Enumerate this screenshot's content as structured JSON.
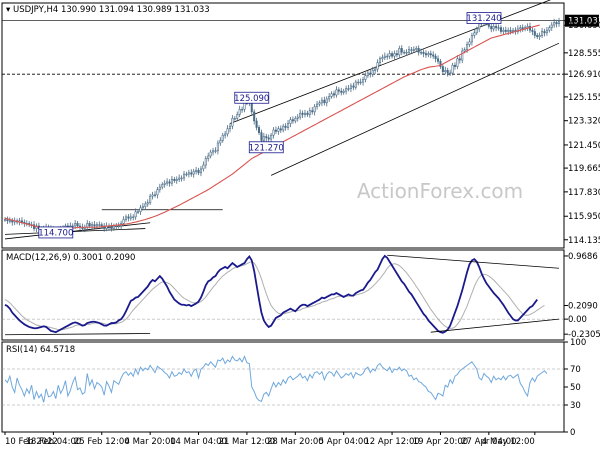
{
  "header": {
    "symbol_label": "USDJPY,H4",
    "ohlc_text": "130.990 131.094 130.989 131.033"
  },
  "watermark": "ActionForex.com",
  "colors": {
    "candles": "#4a6b85",
    "ma_fast": "#d9534f",
    "macd_line": "#1a1a8c",
    "macd_signal": "#b0b0b0",
    "rsi": "#6fa8dc",
    "guides": "#000000",
    "grid": "#cccccc",
    "annotation_box": "#1a1a8c"
  },
  "chart_data": [
    {
      "type": "candlestick",
      "name": "price",
      "ylim": [
        113.5,
        132.4
      ],
      "y_ticks": [
        "131.033",
        "130.690",
        "128.555",
        "126.910",
        "125.155",
        "123.320",
        "121.450",
        "119.665",
        "117.830",
        "115.950",
        "114.135"
      ],
      "y_tick_values": [
        131.033,
        130.69,
        128.555,
        126.91,
        125.155,
        123.32,
        121.45,
        119.665,
        117.83,
        115.95,
        114.135
      ],
      "current_price": 131.033,
      "horizontal_line": 126.91,
      "annotations": [
        {
          "label": "131.240",
          "value": 131.24,
          "x_index": 198
        },
        {
          "label": "125.090",
          "value": 125.09,
          "x_index": 102
        },
        {
          "label": "121.270",
          "value": 121.27,
          "x_index": 108
        },
        {
          "label": "114.700",
          "value": 114.7,
          "x_index": 21
        }
      ],
      "closes": [
        115.7,
        115.6,
        115.6,
        115.5,
        115.6,
        115.5,
        115.6,
        115.5,
        115.4,
        115.4,
        115.3,
        115.3,
        115.0,
        115.2,
        115.0,
        114.9,
        115.0,
        115.1,
        114.9,
        115.0,
        114.9,
        114.8,
        114.9,
        115.0,
        115.0,
        115.2,
        115.1,
        115.2,
        115.2,
        115.4,
        115.2,
        115.1,
        115.0,
        115.1,
        115.4,
        115.2,
        115.3,
        115.2,
        115.3,
        115.3,
        115.2,
        115.0,
        115.2,
        115.2,
        115.0,
        115.2,
        115.2,
        115.2,
        115.4,
        115.7,
        115.9,
        115.8,
        115.9,
        115.9,
        116.3,
        116.3,
        116.6,
        116.7,
        116.9,
        117.0,
        117.5,
        117.6,
        117.6,
        118.0,
        118.2,
        118.4,
        118.5,
        118.6,
        118.5,
        118.8,
        118.7,
        118.8,
        118.9,
        118.9,
        119.2,
        119.2,
        119.3,
        119.2,
        119.4,
        119.5,
        119.3,
        119.6,
        119.9,
        120.4,
        120.6,
        120.9,
        121.0,
        121.0,
        121.6,
        121.8,
        122.2,
        122.3,
        122.7,
        122.9,
        123.5,
        123.5,
        123.8,
        124.2,
        124.2,
        124.7,
        124.7,
        124.8,
        124.0,
        123.3,
        122.8,
        122.4,
        121.8,
        122.1,
        122.0,
        121.9,
        122.2,
        122.6,
        122.5,
        122.7,
        122.6,
        122.9,
        122.8,
        123.1,
        123.4,
        123.3,
        123.5,
        123.6,
        123.9,
        123.8,
        123.9,
        123.8,
        124.1,
        124.0,
        124.4,
        124.6,
        124.7,
        124.9,
        124.7,
        125.0,
        125.2,
        125.4,
        125.3,
        125.7,
        125.6,
        125.5,
        125.6,
        125.8,
        125.8,
        126.0,
        125.9,
        126.3,
        126.3,
        126.3,
        126.5,
        126.8,
        127.0,
        126.9,
        127.2,
        127.3,
        127.8,
        128.1,
        128.2,
        128.3,
        128.3,
        128.5,
        128.3,
        128.5,
        128.4,
        128.9,
        128.6,
        128.6,
        128.6,
        128.8,
        128.8,
        128.8,
        128.9,
        128.6,
        128.6,
        128.5,
        128.4,
        128.5,
        128.4,
        128.3,
        128.1,
        127.9,
        127.5,
        127.1,
        127.2,
        127.0,
        127.0,
        127.6,
        127.5,
        128.1,
        128.0,
        128.7,
        128.8,
        129.2,
        129.4,
        129.9,
        130.1,
        130.4,
        130.8,
        130.9,
        130.9,
        130.9,
        130.6,
        130.4,
        130.6,
        130.5,
        130.5,
        130.2,
        130.3,
        130.2,
        130.3,
        130.2,
        130.3,
        130.2,
        130.4,
        130.5,
        130.4,
        130.5,
        130.6,
        130.3,
        130.2,
        129.9,
        129.8,
        129.9,
        130.2,
        130.1,
        130.3,
        130.5,
        130.7,
        130.9,
        130.8,
        131.0
      ],
      "ma": [
        115.8,
        115.75,
        115.7,
        115.65,
        115.6,
        115.55,
        115.5,
        115.45,
        115.4,
        115.35,
        115.3,
        115.25,
        115.2,
        115.15,
        115.1,
        115.05,
        115.0,
        115.0,
        115.0,
        115.0,
        115.0,
        115.0,
        115.0,
        115.0,
        115.0,
        115.0,
        115.0,
        115.02,
        115.04,
        115.06,
        115.08,
        115.1,
        115.1,
        115.1,
        115.1,
        115.1,
        115.1,
        115.1,
        115.1,
        115.12,
        115.14,
        115.16,
        115.18,
        115.2,
        115.22,
        115.24,
        115.26,
        115.28,
        115.3,
        115.32,
        115.35,
        115.38,
        115.42,
        115.46,
        115.5,
        115.55,
        115.6,
        115.65,
        115.7,
        115.76,
        115.82,
        115.88,
        115.95,
        116.02,
        116.1,
        116.18,
        116.26,
        116.35,
        116.44,
        116.53,
        116.62,
        116.71,
        116.8,
        116.9,
        117.0,
        117.1,
        117.2,
        117.3,
        117.4,
        117.5,
        117.6,
        117.7,
        117.8,
        117.9,
        118.0,
        118.12,
        118.24,
        118.36,
        118.48,
        118.6,
        118.72,
        118.84,
        118.96,
        119.08,
        119.2,
        119.35,
        119.5,
        119.65,
        119.8,
        119.95,
        120.1,
        120.25,
        120.4,
        120.5,
        120.6,
        120.7,
        120.8,
        120.9,
        121.0,
        121.1,
        121.2,
        121.3,
        121.4,
        121.5,
        121.6,
        121.7,
        121.8,
        121.9,
        122.0,
        122.1,
        122.2,
        122.3,
        122.4,
        122.5,
        122.6,
        122.7,
        122.8,
        122.9,
        123.0,
        123.1,
        123.2,
        123.3,
        123.4,
        123.5,
        123.6,
        123.7,
        123.8,
        123.9,
        124.0,
        124.1,
        124.2,
        124.3,
        124.4,
        124.5,
        124.6,
        124.7,
        124.8,
        124.9,
        125.0,
        125.1,
        125.2,
        125.3,
        125.4,
        125.5,
        125.6,
        125.7,
        125.8,
        125.9,
        126.0,
        126.1,
        126.2,
        126.3,
        126.4,
        126.5,
        126.6,
        126.7,
        126.78,
        126.86,
        126.94,
        127.02,
        127.1,
        127.18,
        127.26,
        127.32,
        127.38,
        127.44,
        127.48,
        127.5,
        127.52,
        127.55,
        127.6,
        127.7,
        127.8,
        127.9,
        128.0,
        128.1,
        128.2,
        128.3,
        128.4,
        128.5,
        128.6,
        128.7,
        128.8,
        128.9,
        129.0,
        129.1,
        129.2,
        129.3,
        129.4,
        129.5,
        129.6,
        129.7,
        129.75,
        129.8,
        129.85,
        129.9,
        129.95,
        130.0,
        130.05,
        130.1,
        130.15,
        130.2,
        130.25,
        130.3,
        130.35,
        130.4,
        130.45,
        130.5,
        130.55,
        130.6,
        130.65,
        130.7
      ]
    },
    {
      "type": "line",
      "name": "MACD(12,26,9) 0.3001 0.2090",
      "ylim": [
        -0.32,
        1.06
      ],
      "y_ticks": [
        "0.9686",
        "0.2090",
        "0.00",
        "-0.2305"
      ],
      "y_tick_values": [
        0.9686,
        0.209,
        0.0,
        -0.2305
      ],
      "macd": [
        0.22,
        0.2,
        0.16,
        0.1,
        0.06,
        0.02,
        -0.02,
        -0.05,
        -0.08,
        -0.1,
        -0.12,
        -0.13,
        -0.14,
        -0.14,
        -0.13,
        -0.12,
        -0.11,
        -0.12,
        -0.15,
        -0.18,
        -0.19,
        -0.2,
        -0.18,
        -0.16,
        -0.14,
        -0.12,
        -0.1,
        -0.08,
        -0.06,
        -0.05,
        -0.06,
        -0.08,
        -0.1,
        -0.09,
        -0.06,
        -0.05,
        -0.04,
        -0.04,
        -0.05,
        -0.06,
        -0.08,
        -0.1,
        -0.1,
        -0.08,
        -0.06,
        -0.06,
        -0.05,
        -0.02,
        0.0,
        0.05,
        0.12,
        0.2,
        0.28,
        0.3,
        0.33,
        0.34,
        0.38,
        0.42,
        0.46,
        0.5,
        0.56,
        0.6,
        0.58,
        0.62,
        0.66,
        0.62,
        0.56,
        0.5,
        0.42,
        0.36,
        0.3,
        0.27,
        0.24,
        0.22,
        0.22,
        0.21,
        0.22,
        0.2,
        0.22,
        0.24,
        0.27,
        0.33,
        0.42,
        0.52,
        0.58,
        0.6,
        0.64,
        0.66,
        0.72,
        0.76,
        0.78,
        0.8,
        0.78,
        0.82,
        0.86,
        0.83,
        0.8,
        0.82,
        0.84,
        0.86,
        0.92,
        0.96,
        0.9,
        0.74,
        0.52,
        0.3,
        0.1,
        -0.02,
        -0.08,
        -0.12,
        -0.1,
        -0.04,
        0.02,
        0.04,
        0.06,
        0.1,
        0.12,
        0.14,
        0.16,
        0.14,
        0.12,
        0.16,
        0.2,
        0.22,
        0.22,
        0.2,
        0.22,
        0.24,
        0.26,
        0.28,
        0.3,
        0.33,
        0.32,
        0.34,
        0.36,
        0.38,
        0.38,
        0.4,
        0.38,
        0.36,
        0.34,
        0.36,
        0.38,
        0.36,
        0.36,
        0.4,
        0.42,
        0.44,
        0.45,
        0.5,
        0.56,
        0.6,
        0.66,
        0.72,
        0.76,
        0.84,
        0.92,
        0.97,
        0.94,
        0.88,
        0.82,
        0.76,
        0.7,
        0.64,
        0.58,
        0.54,
        0.48,
        0.42,
        0.38,
        0.32,
        0.26,
        0.2,
        0.14,
        0.08,
        0.04,
        -0.02,
        -0.06,
        -0.1,
        -0.14,
        -0.18,
        -0.2,
        -0.21,
        -0.19,
        -0.16,
        -0.1,
        0.0,
        0.1,
        0.2,
        0.32,
        0.44,
        0.58,
        0.72,
        0.84,
        0.9,
        0.92,
        0.88,
        0.8,
        0.7,
        0.62,
        0.55,
        0.5,
        0.45,
        0.4,
        0.36,
        0.32,
        0.27,
        0.22,
        0.16,
        0.1,
        0.05,
        0.0,
        -0.02,
        -0.02,
        0.02,
        0.06,
        0.1,
        0.14,
        0.18,
        0.2,
        0.25,
        0.3
      ],
      "signal": [
        0.3,
        0.28,
        0.25,
        0.21,
        0.17,
        0.13,
        0.09,
        0.05,
        0.02,
        -0.01,
        -0.03,
        -0.05,
        -0.07,
        -0.09,
        -0.1,
        -0.11,
        -0.11,
        -0.11,
        -0.12,
        -0.13,
        -0.14,
        -0.15,
        -0.16,
        -0.16,
        -0.16,
        -0.15,
        -0.14,
        -0.13,
        -0.12,
        -0.1,
        -0.09,
        -0.09,
        -0.09,
        -0.09,
        -0.08,
        -0.08,
        -0.07,
        -0.06,
        -0.06,
        -0.06,
        -0.06,
        -0.07,
        -0.08,
        -0.08,
        -0.08,
        -0.07,
        -0.07,
        -0.06,
        -0.05,
        -0.03,
        0.0,
        0.04,
        0.09,
        0.14,
        0.18,
        0.22,
        0.26,
        0.3,
        0.34,
        0.38,
        0.42,
        0.46,
        0.49,
        0.52,
        0.55,
        0.57,
        0.57,
        0.56,
        0.54,
        0.51,
        0.47,
        0.43,
        0.39,
        0.35,
        0.32,
        0.3,
        0.28,
        0.26,
        0.25,
        0.25,
        0.25,
        0.27,
        0.3,
        0.34,
        0.39,
        0.44,
        0.49,
        0.53,
        0.58,
        0.62,
        0.66,
        0.69,
        0.72,
        0.74,
        0.77,
        0.79,
        0.8,
        0.81,
        0.82,
        0.83,
        0.85,
        0.87,
        0.88,
        0.86,
        0.8,
        0.72,
        0.62,
        0.5,
        0.39,
        0.29,
        0.21,
        0.16,
        0.12,
        0.09,
        0.08,
        0.08,
        0.09,
        0.1,
        0.11,
        0.12,
        0.12,
        0.13,
        0.14,
        0.16,
        0.17,
        0.18,
        0.19,
        0.2,
        0.21,
        0.23,
        0.24,
        0.26,
        0.27,
        0.28,
        0.3,
        0.31,
        0.32,
        0.34,
        0.35,
        0.35,
        0.35,
        0.35,
        0.35,
        0.36,
        0.36,
        0.37,
        0.38,
        0.39,
        0.4,
        0.42,
        0.44,
        0.47,
        0.5,
        0.54,
        0.58,
        0.62,
        0.67,
        0.72,
        0.78,
        0.82,
        0.84,
        0.85,
        0.84,
        0.82,
        0.79,
        0.75,
        0.71,
        0.66,
        0.61,
        0.56,
        0.5,
        0.45,
        0.39,
        0.33,
        0.27,
        0.21,
        0.15,
        0.1,
        0.05,
        0.0,
        -0.04,
        -0.08,
        -0.11,
        -0.13,
        -0.14,
        -0.14,
        -0.12,
        -0.08,
        -0.03,
        0.04,
        0.12,
        0.2,
        0.3,
        0.4,
        0.5,
        0.58,
        0.64,
        0.68,
        0.69,
        0.68,
        0.66,
        0.63,
        0.6,
        0.56,
        0.52,
        0.48,
        0.44,
        0.4,
        0.36,
        0.31,
        0.26,
        0.21,
        0.16,
        0.12,
        0.08,
        0.06,
        0.06,
        0.07,
        0.09,
        0.11,
        0.14,
        0.16,
        0.19,
        0.21
      ]
    },
    {
      "type": "line",
      "name": "RSI(14) 64.5718",
      "ylim": [
        0,
        100
      ],
      "y_ticks": [
        "100",
        "70",
        "50",
        "30",
        "0"
      ],
      "y_tick_values": [
        100,
        70,
        50,
        30,
        0
      ],
      "values": [
        58,
        55,
        62,
        50,
        44,
        60,
        52,
        47,
        40,
        48,
        43,
        52,
        36,
        45,
        38,
        42,
        33,
        48,
        39,
        40,
        45,
        37,
        52,
        43,
        48,
        57,
        40,
        46,
        55,
        61,
        47,
        49,
        42,
        44,
        65,
        52,
        58,
        48,
        55,
        53,
        50,
        41,
        56,
        51,
        44,
        57,
        55,
        53,
        60,
        65,
        67,
        63,
        66,
        62,
        70,
        64,
        72,
        68,
        71,
        69,
        74,
        70,
        66,
        73,
        71,
        69,
        66,
        64,
        60,
        67,
        62,
        63,
        66,
        64,
        70,
        66,
        67,
        62,
        68,
        70,
        60,
        70,
        72,
        76,
        74,
        78,
        75,
        72,
        80,
        79,
        82,
        76,
        80,
        78,
        84,
        80,
        79,
        82,
        78,
        84,
        77,
        76,
        50,
        45,
        38,
        35,
        34,
        42,
        44,
        40,
        48,
        55,
        50,
        55,
        52,
        58,
        54,
        60,
        62,
        58,
        60,
        62,
        65,
        60,
        62,
        57,
        64,
        60,
        66,
        67,
        64,
        67,
        58,
        64,
        67,
        66,
        62,
        68,
        64,
        60,
        62,
        65,
        63,
        66,
        60,
        66,
        64,
        63,
        65,
        70,
        72,
        66,
        70,
        68,
        74,
        76,
        72,
        70,
        68,
        72,
        66,
        70,
        69,
        72,
        68,
        70,
        68,
        62,
        63,
        58,
        60,
        56,
        55,
        52,
        50,
        45,
        44,
        40,
        36,
        43,
        42,
        40,
        52,
        50,
        58,
        54,
        62,
        64,
        68,
        70,
        72,
        74,
        76,
        78,
        74,
        70,
        60,
        58,
        65,
        62,
        60,
        55,
        62,
        58,
        60,
        58,
        62,
        58,
        62,
        63,
        60,
        62,
        64,
        54,
        50,
        44,
        40,
        55,
        60,
        56,
        62,
        64,
        66,
        68,
        65
      ]
    }
  ],
  "x_axis": {
    "labels": [
      "10 Feb 2022",
      "18 Feb 04:00",
      "25 Feb 12:00",
      "4 Mar 20:00",
      "14 Mar 04:00",
      "21 Mar 12:00",
      "28 Mar 20:00",
      "5 Apr 04:00",
      "12 Apr 12:00",
      "19 Apr 20:00",
      "27 Apr 04:00",
      "4 May 12:00"
    ],
    "label_indices": [
      0,
      20,
      40,
      60,
      80,
      100,
      120,
      140,
      160,
      180,
      200,
      219
    ]
  }
}
